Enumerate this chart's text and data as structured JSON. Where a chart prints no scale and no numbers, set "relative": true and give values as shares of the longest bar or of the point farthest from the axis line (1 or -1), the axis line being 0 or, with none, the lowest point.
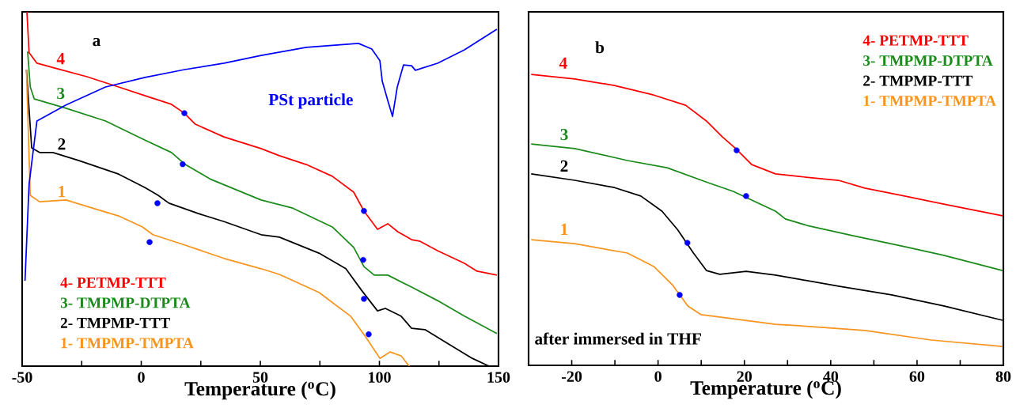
{
  "chart_data": [
    {
      "type": "line",
      "relative": true,
      "xlim": [
        -50,
        150
      ],
      "xticks": [
        -50,
        {
          "value": -25,
          "label": null
        },
        0,
        {
          "value": 25,
          "label": null
        },
        50,
        {
          "value": 75,
          "label": null
        },
        100,
        {
          "value": 125,
          "label": null
        },
        150
      ],
      "xlabel": "Temperature ($^{o}$C)",
      "legend": "bottom left",
      "annotations": [
        "a",
        "PSt particle",
        "4",
        "3",
        "2",
        "1"
      ],
      "series": [
        {
          "name": "4- PETMP-TTT",
          "color": "#ff0000",
          "x": [
            -48.0,
            -47.1,
            -43.8,
            -35.0,
            -22.8,
            -9.5,
            2.7,
            12.7,
            18.1,
            22.7,
            34.7,
            50.3,
            58.0,
            69.3,
            80.2,
            89.2,
            93.5,
            99.2,
            103.5,
            107.8,
            113.5,
            116.8,
            124.4,
            135.7,
            141.0,
            149.3
          ],
          "values": [
            1.0,
            0.885,
            0.855,
            0.839,
            0.817,
            0.788,
            0.761,
            0.739,
            0.714,
            0.683,
            0.647,
            0.614,
            0.594,
            0.569,
            0.536,
            0.491,
            0.438,
            0.386,
            0.402,
            0.379,
            0.357,
            0.353,
            0.326,
            0.29,
            0.268,
            0.257
          ]
        },
        {
          "name": "3- TMPMP-DTPTA",
          "color": "#1a8a1a",
          "x": [
            -47.7,
            -46.6,
            -44.9,
            -31.6,
            -15.0,
            1.6,
            12.7,
            18.1,
            29.3,
            50.3,
            63.6,
            80.2,
            89.2,
            93.5,
            97.8,
            103.5,
            113.5,
            124.4,
            135.7,
            149.3
          ],
          "values": [
            0.888,
            0.788,
            0.754,
            0.728,
            0.692,
            0.638,
            0.603,
            0.571,
            0.527,
            0.469,
            0.446,
            0.393,
            0.335,
            0.281,
            0.257,
            0.257,
            0.223,
            0.185,
            0.141,
            0.092
          ]
        },
        {
          "name": "2- TMPMP-TTT",
          "color": "#000000",
          "x": [
            -48.2,
            -46.0,
            -42.7,
            -37.1,
            -26.1,
            -9.5,
            1.6,
            7.1,
            11.6,
            23.8,
            34.8,
            50.3,
            58.0,
            74.6,
            85.9,
            92.5,
            99.2,
            102.5,
            109.1,
            113.5,
            119.1,
            130.1,
            139.0,
            146.0
          ],
          "values": [
            0.837,
            0.616,
            0.603,
            0.603,
            0.58,
            0.542,
            0.504,
            0.482,
            0.46,
            0.431,
            0.408,
            0.371,
            0.364,
            0.319,
            0.275,
            0.214,
            0.156,
            0.163,
            0.141,
            0.107,
            0.103,
            0.058,
            0.022,
            0.0
          ]
        },
        {
          "name": "1- TMPMP-TMPTA",
          "color": "#f7941d",
          "x": [
            -48.2,
            -46.6,
            -42.7,
            -31.6,
            -20.5,
            -9.5,
            0.5,
            4.9,
            18.2,
            34.8,
            50.3,
            58.0,
            74.6,
            87.9,
            94.5,
            100.2,
            104.5,
            109.1,
            112.5
          ],
          "values": [
            0.837,
            0.482,
            0.464,
            0.469,
            0.446,
            0.424,
            0.393,
            0.371,
            0.342,
            0.304,
            0.275,
            0.259,
            0.208,
            0.141,
            0.08,
            0.022,
            0.04,
            0.029,
            0.0
          ]
        },
        {
          "color": "#0000ff",
          "x": [
            -48.8,
            -47.1,
            -43.8,
            -31.6,
            -15.0,
            1.6,
            18.2,
            34.8,
            50.3,
            69.3,
            91.2,
            96.8,
            100.2,
            101.2,
            103.5,
            105.5,
            107.5,
            110.1,
            113.5,
            115.1,
            124.4,
            135.7,
            149.3
          ],
          "values": [
            0.241,
            0.513,
            0.692,
            0.737,
            0.788,
            0.815,
            0.837,
            0.855,
            0.877,
            0.9,
            0.911,
            0.895,
            0.862,
            0.804,
            0.75,
            0.705,
            0.788,
            0.85,
            0.848,
            0.835,
            0.855,
            0.893,
            0.951
          ]
        },
        {
          "type": "scatter",
          "color": "#0000ff",
          "x": [
            18.1,
            17.4,
            6.8,
            3.5,
            93.5,
            93.2,
            93.5,
            95.5
          ],
          "values": [
            0.714,
            0.57,
            0.46,
            0.35,
            0.438,
            0.3,
            0.19,
            0.09
          ]
        }
      ]
    },
    {
      "type": "line",
      "relative": true,
      "xlim": [
        -30,
        80
      ],
      "xticks": [
        {
          "value": -30,
          "label": null
        },
        -20,
        {
          "value": -10,
          "label": null
        },
        0,
        {
          "value": 10,
          "label": null
        },
        20,
        {
          "value": 30,
          "label": null
        },
        40,
        {
          "value": 50,
          "label": null
        },
        60,
        {
          "value": 70,
          "label": null
        },
        80
      ],
      "xlabel": "Temperature ($^{o}$C)",
      "legend": "top right",
      "annotations": [
        "b",
        "after immersed in THF",
        "4",
        "3",
        "2",
        "1"
      ],
      "series": [
        {
          "name": "4- PETMP-TTT",
          "color": "#ff0000",
          "x": [
            -29.4,
            -19.3,
            -10.1,
            -1.0,
            6.4,
            11.2,
            14.9,
            18.0,
            21.7,
            27.2,
            32.7,
            41.8,
            47.9,
            57.1,
            66.2,
            79.8
          ],
          "values": [
            1.0,
            0.984,
            0.962,
            0.929,
            0.894,
            0.84,
            0.785,
            0.745,
            0.69,
            0.658,
            0.649,
            0.636,
            0.609,
            0.582,
            0.554,
            0.514
          ]
        },
        {
          "name": "3- TMPMP-DTPTA",
          "color": "#1a8a1a",
          "x": [
            -29.4,
            -19.3,
            -7.1,
            2.1,
            11.2,
            17.4,
            21.7,
            27.2,
            29.5,
            34.5,
            45.0,
            57.1,
            66.2,
            79.8
          ],
          "values": [
            0.761,
            0.745,
            0.704,
            0.679,
            0.63,
            0.598,
            0.568,
            0.53,
            0.503,
            0.481,
            0.446,
            0.408,
            0.378,
            0.326
          ]
        },
        {
          "name": "2- TMPMP-TTT",
          "color": "#000000",
          "x": [
            -29.4,
            -19.3,
            -10.1,
            -4.0,
            0.9,
            4.5,
            8.2,
            11.2,
            14.3,
            20.4,
            27.2,
            32.7,
            41.8,
            54.1,
            66.2,
            79.8
          ],
          "values": [
            0.658,
            0.636,
            0.611,
            0.582,
            0.53,
            0.467,
            0.386,
            0.326,
            0.313,
            0.323,
            0.31,
            0.296,
            0.272,
            0.242,
            0.204,
            0.155
          ]
        },
        {
          "name": "1- TMPMP-TMPTA",
          "color": "#f7941d",
          "x": [
            -29.4,
            -19.3,
            -7.1,
            -1.0,
            3.3,
            6.9,
            10.0,
            17.4,
            27.2,
            32.7,
            47.9,
            63.3,
            79.8
          ],
          "values": [
            0.432,
            0.418,
            0.386,
            0.34,
            0.277,
            0.204,
            0.174,
            0.16,
            0.141,
            0.136,
            0.12,
            0.087,
            0.065
          ]
        },
        {
          "type": "scatter",
          "color": "#0000ff",
          "x": [
            18.2,
            20.4,
            6.8,
            5.0
          ],
          "values": [
            0.739,
            0.582,
            0.421,
            0.242
          ]
        }
      ]
    }
  ]
}
